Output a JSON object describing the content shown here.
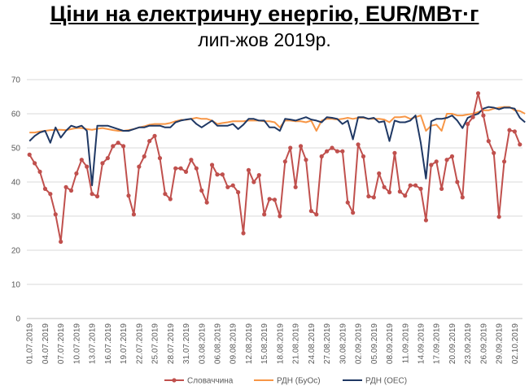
{
  "title": "Ціни на електричну енергію, EUR/МВт·г",
  "subtitle": "лип-жов 2019р.",
  "chart_data": {
    "type": "line",
    "ylim": [
      0,
      70
    ],
    "yticks": [
      "0",
      "10",
      "20",
      "30",
      "40",
      "50",
      "60",
      "70"
    ],
    "x_tick_labels": [
      "01.07.2019",
      "04.07.2019",
      "07.07.2019",
      "10.07.2019",
      "13.07.2019",
      "16.07.2019",
      "19.07.2019",
      "22.07.2019",
      "25.07.2019",
      "28.07.2019",
      "31.07.2019",
      "03.08.2019",
      "06.08.2019",
      "09.08.2019",
      "12.08.2019",
      "15.08.2019",
      "18.08.2019",
      "21.08.2019",
      "24.08.2019",
      "27.08.2019",
      "30.08.2019",
      "02.09.2019",
      "05.09.2019",
      "08.09.2019",
      "11.09.2019",
      "14.09.2019",
      "17.09.2019",
      "20.09.2019",
      "23.09.2019",
      "26.09.2019",
      "29.09.2019",
      "02.10.2019"
    ],
    "grid": true,
    "legend_position": "bottom",
    "series": [
      {
        "name": "Словаччина",
        "color": "#c0504d",
        "markers": true,
        "values": [
          48,
          45.5,
          43,
          38,
          36.5,
          30.5,
          22.5,
          38.5,
          37.5,
          42.5,
          46.5,
          44.5,
          36.5,
          35.8,
          45.5,
          47,
          50.5,
          51.5,
          50.5,
          36,
          30.5,
          44.5,
          47.5,
          52,
          53.5,
          47,
          36.5,
          35,
          44,
          44,
          43,
          46.5,
          44,
          37.5,
          34,
          45,
          42.2,
          42.2,
          38.5,
          39,
          37,
          25,
          43.5,
          40,
          42,
          30.5,
          35,
          34.8,
          30,
          46,
          50,
          38.5,
          50.5,
          46.5,
          31.5,
          30.5,
          47.5,
          49,
          50,
          49,
          49,
          34,
          31,
          51,
          47.5,
          35.8,
          35.5,
          42.5,
          38.5,
          37,
          48.5,
          37.2,
          36,
          39,
          39,
          38,
          28.8,
          45,
          46,
          38,
          46.5,
          47.5,
          40,
          35.5,
          57,
          59,
          66,
          59.5,
          52,
          48.5,
          29.8,
          46,
          55.2,
          54.8,
          51
        ]
      },
      {
        "name": "РДН (БуОс)",
        "color": "#f79646",
        "markers": false,
        "values": [
          54.5,
          54.5,
          54.8,
          55,
          55.2,
          55.3,
          55.3,
          55.2,
          55.5,
          55.8,
          55.8,
          55.5,
          55.3,
          55.6,
          55.8,
          55.5,
          55.2,
          55,
          55,
          55.2,
          55.5,
          56,
          56.3,
          56.8,
          57,
          57,
          57,
          57.3,
          57.8,
          58.2,
          58.2,
          58.5,
          58.8,
          58.5,
          58.5,
          58,
          57,
          57.3,
          57.5,
          57.8,
          57.8,
          57.8,
          58,
          58,
          58,
          57.8,
          57.8,
          57.5,
          56,
          58,
          58,
          57.8,
          57.8,
          57.5,
          58,
          55,
          58,
          58.5,
          58.5,
          58.3,
          58.5,
          58.8,
          58.5,
          58.8,
          58.8,
          58.5,
          58.5,
          58.5,
          58.3,
          57.5,
          59,
          59,
          59.2,
          58.5,
          59,
          59.5,
          55,
          56.5,
          56.8,
          55,
          60,
          60,
          59.5,
          59.5,
          59.8,
          60,
          60.5,
          61,
          61,
          61.5,
          61.8,
          62,
          62,
          61,
          60.8,
          60
        ]
      },
      {
        "name": "РДН (ОЕС)",
        "color": "#1f3864",
        "markers": false,
        "values": [
          52,
          53.5,
          54.5,
          55,
          51.5,
          56,
          53,
          55,
          56.5,
          56,
          56.5,
          55,
          39,
          56.5,
          56.5,
          56.5,
          56,
          55.5,
          55,
          55,
          55.5,
          56,
          56,
          56.5,
          56.5,
          56.5,
          56,
          56,
          57.5,
          58,
          58.3,
          58.5,
          57,
          56,
          57,
          58,
          56.5,
          56.5,
          56.5,
          57,
          55.5,
          56.8,
          58.5,
          58.5,
          58,
          58,
          56,
          56,
          55,
          58.5,
          58.3,
          58,
          58.5,
          59,
          58.3,
          58,
          57.5,
          59,
          58.8,
          58.5,
          57,
          58,
          52.5,
          59,
          59,
          58.5,
          58.8,
          57.5,
          57.8,
          52,
          58,
          57.5,
          57.5,
          58,
          59.5,
          51.5,
          41,
          57.8,
          58.5,
          58.5,
          58.8,
          59.5,
          58,
          55.8,
          58.8,
          59.5,
          60,
          61.5,
          62,
          61.8,
          61.3,
          61.8,
          61.8,
          61.5,
          58.8,
          57.5
        ]
      }
    ]
  }
}
